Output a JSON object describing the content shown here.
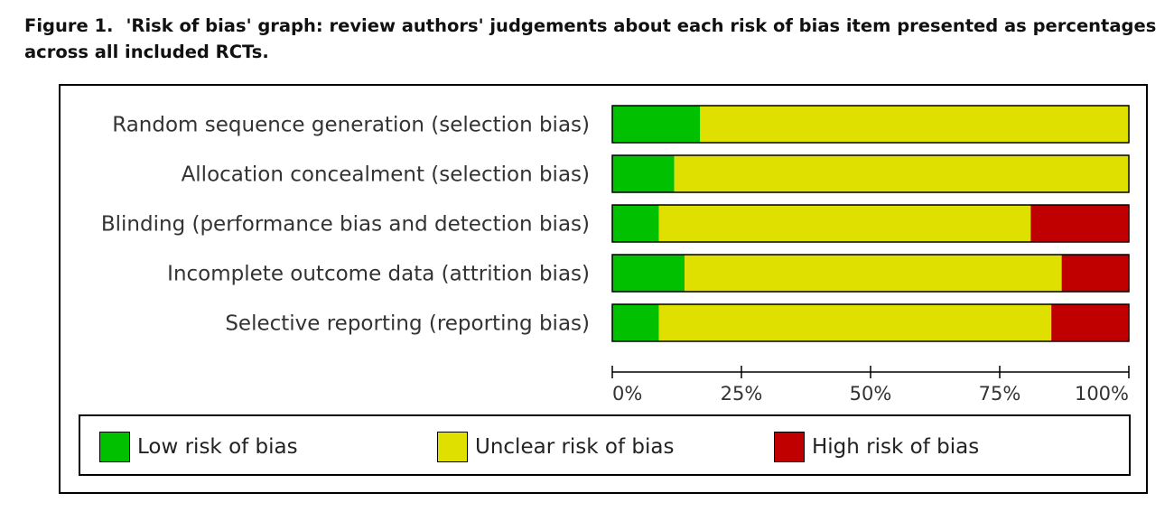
{
  "caption": {
    "label": "Figure 1.",
    "text": "'Risk of bias' graph: review authors' judgements about each risk of bias item presented as percentages across all included RCTs."
  },
  "colors": {
    "low": "#00c000",
    "unclear": "#e0e000",
    "high": "#c00000"
  },
  "legend": {
    "items": [
      {
        "key": "low",
        "label": "Low risk of bias"
      },
      {
        "key": "unclear",
        "label": "Unclear risk of bias"
      },
      {
        "key": "high",
        "label": "High risk of bias"
      }
    ]
  },
  "chart_data": {
    "type": "bar",
    "orientation": "horizontal",
    "stacked": true,
    "categories": [
      "Random sequence generation (selection bias)",
      "Allocation concealment (selection bias)",
      "Blinding (performance bias and detection bias)",
      "Incomplete outcome data (attrition bias)",
      "Selective reporting (reporting bias)"
    ],
    "series": [
      {
        "name": "Low risk of bias",
        "key": "low",
        "values": [
          17,
          12,
          9,
          14,
          9
        ]
      },
      {
        "name": "Unclear risk of bias",
        "key": "unclear",
        "values": [
          83,
          88,
          72,
          73,
          76
        ]
      },
      {
        "name": "High risk of bias",
        "key": "high",
        "values": [
          0,
          0,
          19,
          13,
          15
        ]
      }
    ],
    "xlim": [
      0,
      100
    ],
    "xticks": [
      "0%",
      "25%",
      "50%",
      "75%",
      "100%"
    ],
    "xtick_values": [
      0,
      25,
      50,
      75,
      100
    ],
    "grid": false,
    "legend_position": "bottom"
  }
}
